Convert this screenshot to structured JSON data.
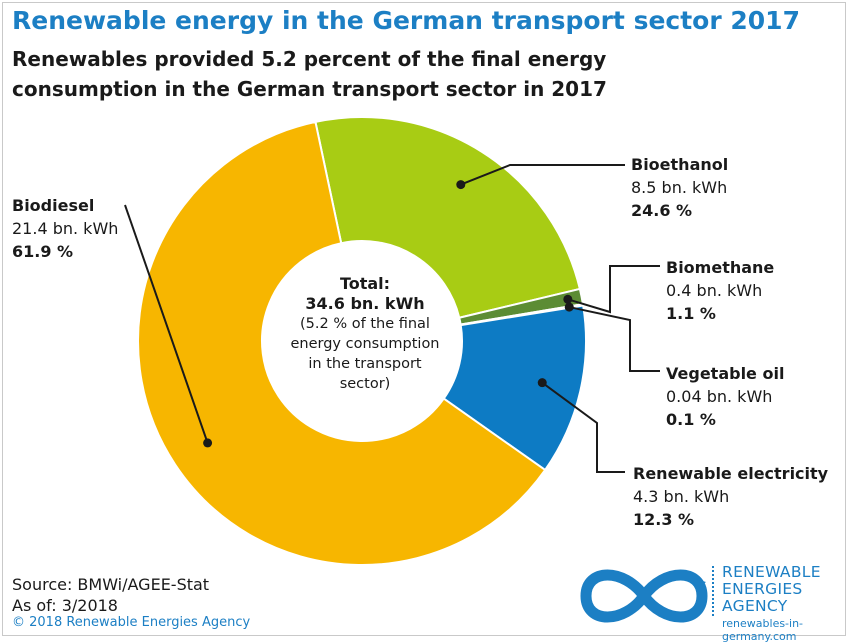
{
  "title": "Renewable energy in the German transport sector 2017",
  "subtitle": "Renewables provided 5.2 percent of the final energy consumption in the German transport sector in 2017",
  "chart_data": {
    "type": "pie",
    "variant": "donut",
    "center": {
      "line1": "Total:",
      "line2": "34.6 bn. kWh",
      "line3": "(5.2 % of the final",
      "line4": "energy consumption",
      "line5": "in the transport",
      "line6": "sector)"
    },
    "slices": [
      {
        "name": "Bioethanol",
        "value_label": "8.5 bn. kWh",
        "value": 8.5,
        "percent": 24.6,
        "percent_label": "24.6 %",
        "color": "#a8cc14"
      },
      {
        "name": "Biomethane",
        "value_label": "0.4 bn. kWh",
        "value": 0.4,
        "percent": 1.1,
        "percent_label": "1.1 %",
        "color": "#5c8c34"
      },
      {
        "name": "Vegetable oil",
        "value_label": "0.04 bn. kWh",
        "value": 0.04,
        "percent": 0.1,
        "percent_label": "0.1 %",
        "color": "#3a6a28"
      },
      {
        "name": "Renewable electricity",
        "value_label": "4.3 bn. kWh",
        "value": 4.3,
        "percent": 12.3,
        "percent_label": "12.3 %",
        "color": "#0d7bc4"
      },
      {
        "name": "Biodiesel",
        "value_label": "21.4 bn. kWh",
        "value": 21.4,
        "percent": 61.9,
        "percent_label": "61.9 %",
        "color": "#f7b600"
      }
    ]
  },
  "footer": {
    "source": "Source: BMWi/AGEE-Stat",
    "as_of": "As of: 3/2018",
    "copyright": "© 2018 Renewable Energies Agency"
  },
  "logo": {
    "line1": "RENEWABLE",
    "line2": "ENERGIES",
    "line3": "AGENCY",
    "url": "renewables-in-germany.com",
    "color": "#1c7fc4",
    "icon": "infinity-icon"
  }
}
